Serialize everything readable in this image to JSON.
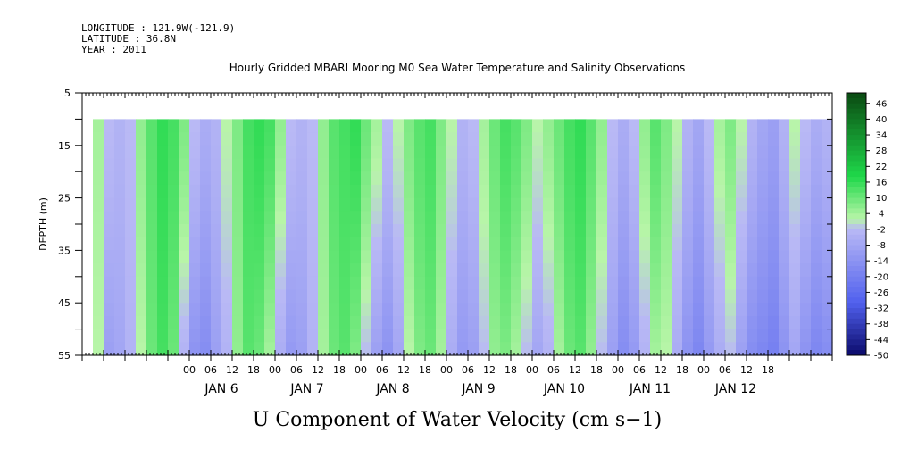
{
  "header": {
    "longitude": "LONGITUDE : 121.9W(-121.9)",
    "latitude": "LATITUDE : 36.8N",
    "year": "YEAR : 2011",
    "title": "Hourly Gridded MBARI Mooring M0 Sea Water Temperature and Salinity Observations"
  },
  "chart_data": {
    "type": "heatmap",
    "title": "Hourly Gridded MBARI Mooring M0 Sea Water Temperature and Salinity Observations",
    "xlabel": "U Component of Water Velocity (cm s−1)",
    "ylabel": "DEPTH (m)",
    "y_range": [
      5,
      55
    ],
    "y_inverted": true,
    "y_ticks": [
      5,
      15,
      25,
      35,
      45,
      55
    ],
    "x_range_hours": [
      -36,
      174
    ],
    "x_hour_ticks": [
      "00",
      "06",
      "12",
      "18",
      "00",
      "06",
      "12",
      "18",
      "00",
      "06",
      "12",
      "18",
      "00",
      "06",
      "12",
      "18",
      "00",
      "06",
      "12",
      "18",
      "00",
      "06",
      "12",
      "18",
      "00",
      "06",
      "12",
      "18"
    ],
    "x_day_labels": [
      "JAN  6",
      "JAN  7",
      "JAN  8",
      "JAN  9",
      "JAN 10",
      "JAN 11",
      "JAN 12"
    ],
    "data_depth_range": [
      10,
      55
    ],
    "data_start_hour": -33,
    "colorbar_levels": [
      46,
      40,
      34,
      28,
      22,
      16,
      10,
      4,
      -2,
      -8,
      -14,
      -20,
      -26,
      -32,
      -38,
      -44,
      -50
    ],
    "colorbar_range": [
      -50,
      50
    ],
    "colors": {
      "strong_positive": "#0a4a12",
      "positive": "#1fd84a",
      "weak_positive": "#b8f5a8",
      "weak_negative": "#b9b9f5",
      "negative": "#5060ee",
      "strong_negative": "#0a0a6a"
    },
    "column_profile_hours": [
      -33,
      -30,
      -27,
      -24,
      -21,
      -18,
      -15,
      -12,
      -9,
      -6,
      -3,
      0,
      3,
      6,
      9,
      12,
      15,
      18,
      21,
      24,
      27,
      30,
      33,
      36,
      39,
      42,
      45,
      48,
      51,
      54,
      57,
      60,
      63,
      66,
      69,
      72,
      75,
      78,
      81,
      84,
      87,
      90,
      93,
      96,
      99,
      102,
      105,
      108,
      111,
      114,
      117,
      120,
      123,
      126,
      129,
      132,
      135,
      138,
      141,
      144,
      147,
      150,
      153,
      156,
      159,
      162,
      165,
      168,
      171
    ],
    "column_surface_u": [
      4,
      -2,
      -4,
      -2,
      6,
      12,
      16,
      14,
      8,
      -2,
      -6,
      -4,
      2,
      8,
      14,
      16,
      14,
      6,
      -2,
      -4,
      -2,
      6,
      12,
      14,
      16,
      10,
      4,
      -2,
      2,
      8,
      12,
      14,
      8,
      2,
      -4,
      -2,
      4,
      10,
      14,
      12,
      8,
      2,
      6,
      10,
      14,
      16,
      12,
      6,
      -2,
      -6,
      -2,
      6,
      12,
      8,
      2,
      -4,
      -8,
      -2,
      4,
      8,
      2,
      -4,
      -8,
      -10,
      -4,
      2,
      -2,
      -6,
      -4
    ],
    "column_bottom_u": [
      2,
      -10,
      -8,
      -4,
      2,
      10,
      14,
      10,
      -4,
      -14,
      -16,
      -10,
      -4,
      6,
      12,
      10,
      4,
      -6,
      -12,
      -10,
      -4,
      4,
      10,
      12,
      8,
      -2,
      -10,
      -14,
      -8,
      2,
      8,
      10,
      4,
      -6,
      -12,
      -10,
      -2,
      6,
      8,
      4,
      -2,
      -8,
      -4,
      4,
      10,
      12,
      6,
      -2,
      -10,
      -16,
      -12,
      -4,
      4,
      2,
      -6,
      -14,
      -18,
      -12,
      -6,
      -2,
      -10,
      -16,
      -18,
      -20,
      -14,
      -8,
      -14,
      -18,
      -16
    ]
  }
}
